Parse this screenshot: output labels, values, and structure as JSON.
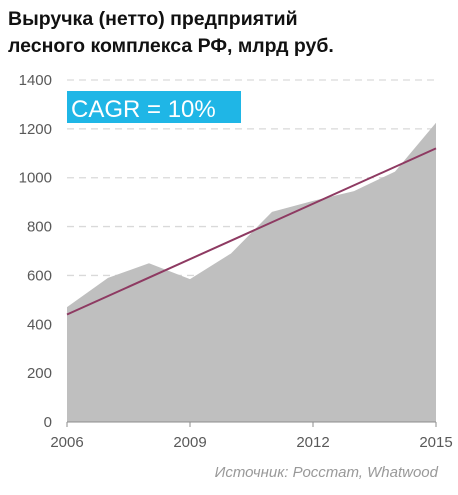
{
  "title_lines": [
    "Выручка (нетто) предприятий",
    "лесного комплекса РФ, млрд руб."
  ],
  "source": "Источник: Росстат, Whatwood",
  "annotation": "CAGR = 10%",
  "colors": {
    "area": "#bfbfbf",
    "trend": "#8e3a62",
    "annotation_bg": "#1fb6e6",
    "grid": "#d9d9d9",
    "axis_text": "#595959"
  },
  "chart_data": {
    "type": "area",
    "title": "Выручка (нетто) предприятий лесного комплекса РФ, млрд руб.",
    "x": [
      2006,
      2007,
      2008,
      2009,
      2010,
      2011,
      2012,
      2013,
      2014,
      2015
    ],
    "series": [
      {
        "values": [
          470,
          590,
          650,
          585,
          690,
          860,
          905,
          945,
          1025,
          1225
        ]
      }
    ],
    "trendline": {
      "label": "CAGR = 10%",
      "start": [
        2006,
        440
      ],
      "end": [
        2015,
        1120
      ]
    },
    "xticks": [
      2006,
      2009,
      2012,
      2015
    ],
    "yticks": [
      0,
      200,
      400,
      600,
      800,
      1000,
      1200,
      1400
    ],
    "xlim": [
      2006,
      2015
    ],
    "ylim": [
      0,
      1400
    ],
    "grid": "horizontal dashed",
    "xlabel": "",
    "ylabel": ""
  }
}
